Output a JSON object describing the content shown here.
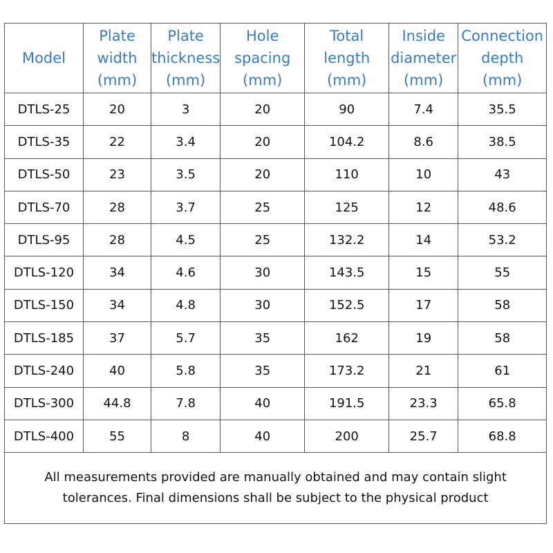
{
  "table": {
    "header": [
      [
        "Model"
      ],
      [
        "Plate",
        "width",
        "(mm)"
      ],
      [
        "Plate",
        "thickness",
        "(mm)"
      ],
      [
        "Hole",
        "spacing",
        "(mm)"
      ],
      [
        "Total",
        "length",
        "(mm)"
      ],
      [
        "Inside",
        "diameter",
        "(mm)"
      ],
      [
        "Connection",
        "depth",
        "(mm)"
      ]
    ],
    "rows": [
      [
        "DTLS-25",
        20,
        3,
        20,
        90,
        7.4,
        35.5
      ],
      [
        "DTLS-35",
        22,
        3.4,
        20,
        104.2,
        8.6,
        38.5
      ],
      [
        "DTLS-50",
        23,
        3.5,
        20,
        110,
        10,
        43
      ],
      [
        "DTLS-70",
        28,
        3.7,
        25,
        125,
        12,
        48.6
      ],
      [
        "DTLS-95",
        28,
        4.5,
        25,
        132.2,
        14,
        53.2
      ],
      [
        "DTLS-120",
        34,
        4.6,
        30,
        143.5,
        15,
        55
      ],
      [
        "DTLS-150",
        34,
        4.8,
        30,
        152.5,
        17,
        58
      ],
      [
        "DTLS-185",
        37,
        5.7,
        35,
        162,
        19,
        58
      ],
      [
        "DTLS-240",
        40,
        5.8,
        35,
        173.2,
        21,
        61
      ],
      [
        "DTLS-300",
        44.8,
        7.8,
        40,
        191.5,
        23.3,
        65.8
      ],
      [
        "DTLS-400",
        55,
        8,
        40,
        200,
        25.7,
        68.8
      ]
    ],
    "note": [
      "All measurements provided are manually obtained and may contain slight",
      "tolerances. Final dimensions shall be subject to the physical product"
    ]
  }
}
